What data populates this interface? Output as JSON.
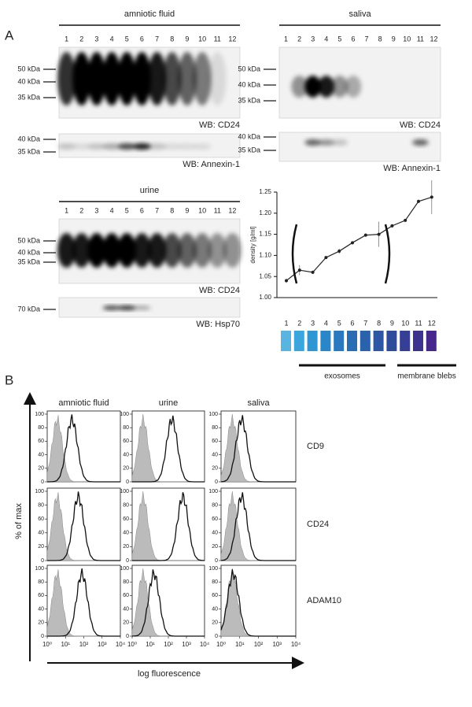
{
  "panel_labels": [
    "A",
    "B"
  ],
  "blots": [
    {
      "title": "amniotic fluid",
      "lanes": [
        1,
        2,
        3,
        4,
        5,
        6,
        7,
        8,
        9,
        10,
        11,
        12
      ],
      "strips": [
        {
          "markers": [
            "50 kDa",
            "40 kDa",
            "35 kDa"
          ],
          "label": "WB: CD24"
        },
        {
          "markers": [
            "40 kDa",
            "35 kDa"
          ],
          "label": "WB: Annexin-1"
        }
      ]
    },
    {
      "title": "saliva",
      "lanes": [
        1,
        2,
        3,
        4,
        5,
        6,
        7,
        8,
        9,
        10,
        11,
        12
      ],
      "strips": [
        {
          "markers": [
            "50 kDa",
            "40 kDa",
            "35 kDa"
          ],
          "label": "WB: CD24"
        },
        {
          "markers": [
            "40 kDa",
            "35 kDa"
          ],
          "label": "WB: Annexin-1"
        }
      ]
    },
    {
      "title": "urine",
      "lanes": [
        1,
        2,
        3,
        4,
        5,
        6,
        7,
        8,
        9,
        10,
        11,
        12
      ],
      "strips": [
        {
          "markers": [
            "50 kDa",
            "40 kDa",
            "35 kDa"
          ],
          "label": "WB: CD24"
        },
        {
          "markers": [
            "70 kDa"
          ],
          "label": "WB: Hsp70"
        }
      ]
    }
  ],
  "chart_data": {
    "type": "line",
    "y_label": "density [g/ml]",
    "x": [
      1,
      2,
      3,
      4,
      5,
      6,
      7,
      8,
      9,
      10,
      11,
      12
    ],
    "values": [
      1.04,
      1.065,
      1.06,
      1.095,
      1.11,
      1.13,
      1.148,
      1.15,
      1.17,
      1.183,
      1.228,
      1.238
    ],
    "errors": [
      0.005,
      0.012,
      0.004,
      0.003,
      0.006,
      0.003,
      0.004,
      0.03,
      0.004,
      0.003,
      0.004,
      0.04
    ],
    "color": "#222222",
    "ylim": [
      1.0,
      1.25
    ],
    "yticks": [
      {
        "value": 1.0,
        "label": "1.00"
      },
      1.05,
      {
        "value": 1.1,
        "label": "1.10"
      },
      1.15,
      {
        "value": 1.2,
        "label": "1.20"
      },
      1.25
    ],
    "fraction_colors": [
      "#5ab4e0",
      "#3aa6dc",
      "#2d96d3",
      "#2a86c8",
      "#2a78bd",
      "#2a6db4",
      "#2a62ab",
      "#2b57a4",
      "#2d4d9c",
      "#353f96",
      "#3c338f",
      "#47288a"
    ],
    "groups": [
      "exosomes",
      "membrane blebs"
    ]
  },
  "flow": {
    "columns": [
      "amniotic fluid",
      "urine",
      "saliva"
    ],
    "rows": [
      "CD9",
      "CD24",
      "ADAM10"
    ],
    "y_label": "% of max",
    "x_label": "log fluorescence",
    "yticks": [
      0,
      20,
      40,
      60,
      80,
      100
    ],
    "xticks": [
      {
        "value": 1,
        "label": "10⁰"
      },
      {
        "value": 10,
        "label": "10¹"
      },
      {
        "value": 100,
        "label": "10²"
      },
      {
        "value": 1000,
        "label": "10³"
      },
      {
        "value": 10000,
        "label": "10⁴"
      }
    ]
  }
}
